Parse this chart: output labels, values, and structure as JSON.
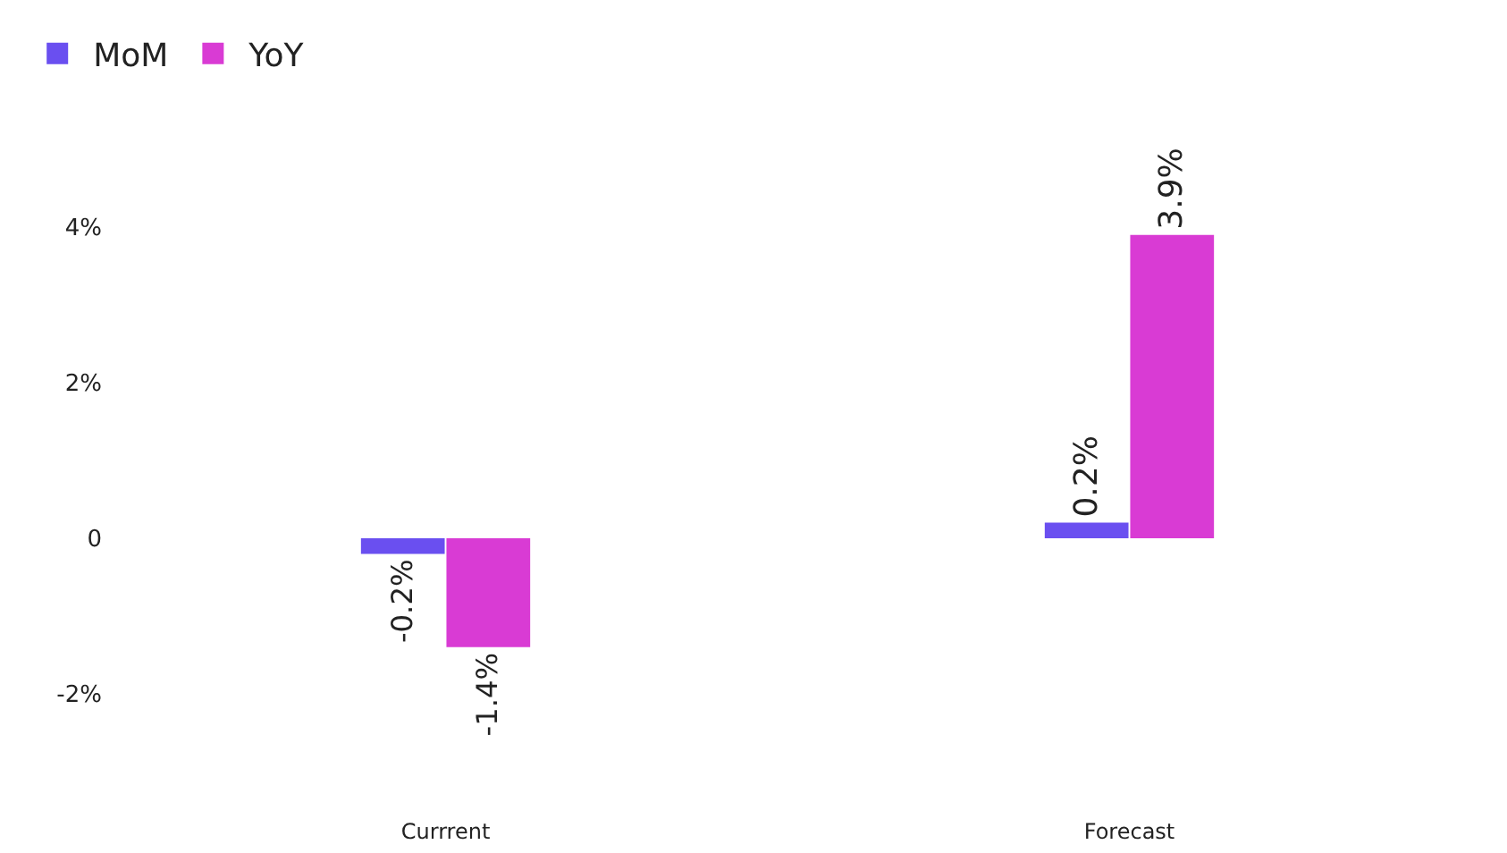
{
  "chart_data": {
    "type": "bar",
    "categories": [
      "Currrent",
      "Forecast"
    ],
    "series": [
      {
        "name": "MoM",
        "color": "#6a4ff0",
        "values": [
          -0.2,
          0.2
        ],
        "value_labels": [
          "-0.2%",
          "0.2%"
        ]
      },
      {
        "name": "YoY",
        "color": "#d93bd4",
        "values": [
          -1.4,
          3.9
        ],
        "value_labels": [
          "-1.4%",
          "3.9%"
        ]
      }
    ],
    "ylim": [
      -2,
      4
    ],
    "yticks": [
      {
        "value": -2,
        "label": "-2%"
      },
      0,
      {
        "value": 2,
        "label": "2%"
      },
      {
        "value": 4,
        "label": "4%"
      }
    ],
    "legend": "top left"
  }
}
